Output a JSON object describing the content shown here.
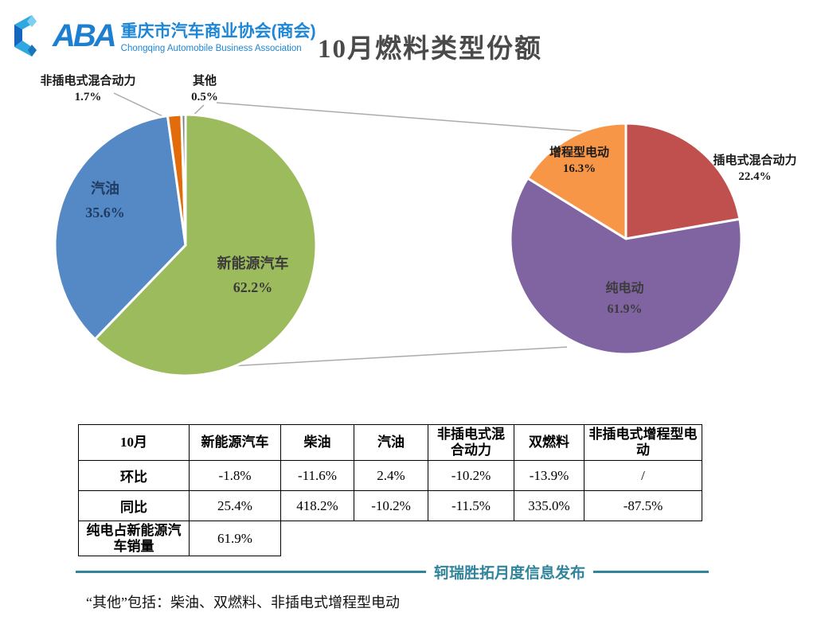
{
  "header": {
    "logo_mark": "CABA-logo",
    "logo_aba": "ABA",
    "org_cn": "重庆市汽车商业协会(商会)",
    "org_en": "Chongqing Automobile Business Association",
    "title": "10月燃料类型份额"
  },
  "chart_data": [
    {
      "type": "pie",
      "name": "fuel-type-share-october",
      "title": "10月燃料类型份额",
      "slices": [
        {
          "label": "新能源汽车",
          "value": 62.2,
          "color": "#9cbb5c"
        },
        {
          "label": "汽油",
          "value": 35.6,
          "color": "#5589c6"
        },
        {
          "label": "非插电式混合动力",
          "value": 1.7,
          "color": "#e36c0a"
        },
        {
          "label": "其他",
          "value": 0.5,
          "color": "#7f7f7f"
        }
      ],
      "legend_position": "none",
      "start_angle_deg": 0,
      "direction": "clockwise"
    },
    {
      "type": "pie",
      "name": "nev-breakdown",
      "title": "新能源汽车细分",
      "slices": [
        {
          "label": "插电式混合动力",
          "value": 22.4,
          "color": "#c0504d"
        },
        {
          "label": "纯电动",
          "value": 61.9,
          "color": "#8064a2"
        },
        {
          "label": "增程型电动",
          "value": 16.3,
          "color": "#f79646"
        }
      ],
      "legend_position": "none",
      "start_angle_deg": 0,
      "direction": "clockwise"
    }
  ],
  "labels": {
    "nonplug_hybrid": {
      "name": "非插电式混合动力",
      "pct": "1.7%"
    },
    "other": {
      "name": "其他",
      "pct": "0.5%"
    },
    "gasoline": {
      "name": "汽油",
      "pct": "35.6%"
    },
    "nev": {
      "name": "新能源汽车",
      "pct": "62.2%"
    },
    "erev": {
      "name": "增程型电动",
      "pct": "16.3%"
    },
    "phev": {
      "name": "插电式混合动力",
      "pct": "22.4%"
    },
    "bev": {
      "name": "纯电动",
      "pct": "61.9%"
    }
  },
  "table": {
    "headers": [
      "10月",
      "新能源汽车",
      "柴油",
      "汽油",
      "非插电式混合动力",
      "双燃料",
      "非插电式增程型电动"
    ],
    "rows": [
      [
        "环比",
        "-1.8%",
        "-11.6%",
        "2.4%",
        "-10.2%",
        "-13.9%",
        "/"
      ],
      [
        "同比",
        "25.4%",
        "418.2%",
        "-10.2%",
        "-11.5%",
        "335.0%",
        "-87.5%"
      ]
    ],
    "summary_row": {
      "label": "纯电占新能源汽车销量",
      "value": "61.9%"
    }
  },
  "footer": {
    "publisher": "轲瑞胜拓月度信息发布",
    "note": "“其他”包括：柴油、双燃料、非插电式增程型电动"
  },
  "colors": {
    "brand_blue": "#1e86d6",
    "title_gray": "#4a4a4a",
    "teal_divider": "#31849b",
    "connector_gray": "#ababab"
  }
}
